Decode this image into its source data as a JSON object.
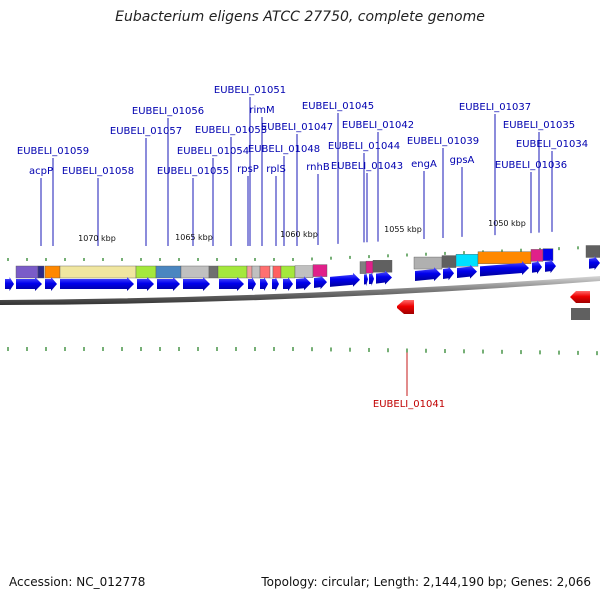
{
  "title": "Eubacterium eligens ATCC 27750, complete genome",
  "footer": {
    "accession": "Accession: NC_012778",
    "summary": "Topology: circular; Length: 2,144,190 bp; Genes: 2,066"
  },
  "ruler_labels": [
    "1070 kbp",
    "1065 kbp",
    "1060 kbp",
    "1055 kbp",
    "1050 kbp"
  ],
  "gene_labels_forward": [
    "EUBELI_01059",
    "acpP",
    "EUBELI_01058",
    "EUBELI_01057",
    "EUBELI_01056",
    "EUBELI_01055",
    "EUBELI_01054",
    "EUBELI_01053",
    "rpsP",
    "EUBELI_01051",
    "rimM",
    "rplS",
    "EUBELI_01048",
    "EUBELI_01047",
    "rnhB",
    "EUBELI_01045",
    "EUBELI_01044",
    "EUBELI_01043",
    "EUBELI_01042",
    "engA",
    "EUBELI_01039",
    "gpsA",
    "EUBELI_01037",
    "EUBELI_01036",
    "EUBELI_01035",
    "EUBELI_01034"
  ],
  "gene_labels_reverse": [
    "EUBELI_01041"
  ],
  "colors": {
    "gene_blue": "#0000ee",
    "gene_red": "#ee0000",
    "label_blue": "#0000b0",
    "label_red": "#c00000",
    "tick_green": "#1a7a1a"
  }
}
